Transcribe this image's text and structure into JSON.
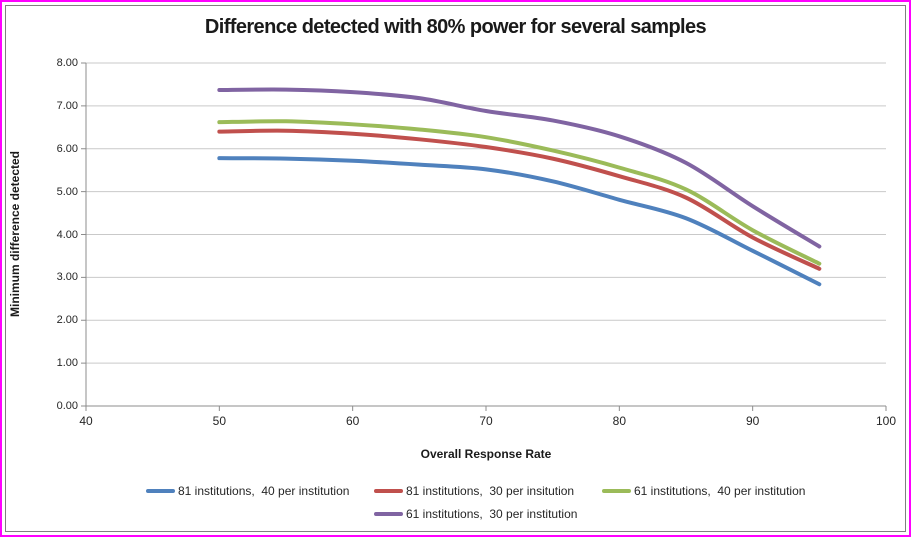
{
  "page": {
    "outer_border_color": "#ff00ff",
    "chart_border_color": "#7f7f7f"
  },
  "chart_data": {
    "type": "line",
    "title": "Difference detected with 80% power for several samples",
    "xlabel": "Overall Response Rate",
    "ylabel": "Minimum difference detected",
    "xlim": [
      40,
      100
    ],
    "ylim": [
      0,
      8
    ],
    "x_ticks": [
      "40",
      "50",
      "60",
      "70",
      "80",
      "90",
      "100"
    ],
    "y_ticks": [
      "0.00",
      "1.00",
      "2.00",
      "3.00",
      "4.00",
      "5.00",
      "6.00",
      "7.00",
      "8.00"
    ],
    "grid": "horizontal",
    "gridline_color": "#c9c9c9",
    "axis_color": "#8c8c8c",
    "legend_position": "bottom",
    "x": [
      50,
      55,
      60,
      65,
      70,
      75,
      80,
      85,
      90,
      95
    ],
    "series": [
      {
        "name": "81 institutions,  40 per institution",
        "color": "#4F81BD",
        "values": [
          5.78,
          5.77,
          5.72,
          5.63,
          5.52,
          5.24,
          4.81,
          4.38,
          3.62,
          2.84
        ]
      },
      {
        "name": "81 institutions,  30 per insitution",
        "color": "#C0504D",
        "values": [
          6.4,
          6.42,
          6.35,
          6.22,
          6.04,
          5.77,
          5.36,
          4.86,
          3.93,
          3.2
        ]
      },
      {
        "name": "61 institutions,  40 per institution",
        "color": "#9BBB59",
        "values": [
          6.62,
          6.64,
          6.57,
          6.45,
          6.27,
          5.96,
          5.56,
          5.05,
          4.1,
          3.32
        ]
      },
      {
        "name": "61 institutions,  30 per institution",
        "color": "#8064A2",
        "values": [
          7.37,
          7.38,
          7.32,
          7.18,
          6.88,
          6.66,
          6.29,
          5.67,
          4.66,
          3.72
        ]
      }
    ]
  }
}
